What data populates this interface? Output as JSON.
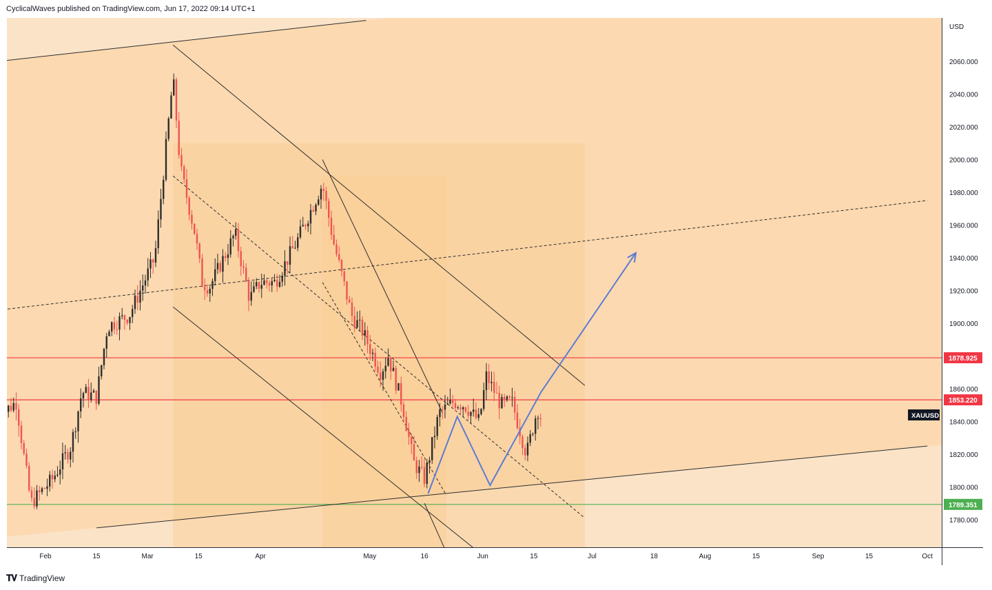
{
  "header": {
    "text": "CyclicalWaves published on TradingView.com, Jun 17, 2022 09:14 UTC+1"
  },
  "footer": {
    "brand": "TradingView"
  },
  "colors": {
    "background_outer": "#fbe3c8",
    "background_channel": "#fcd9b0",
    "band": "#f9cd95",
    "candle_up": "#2d2d2d",
    "candle_down": "#ef5350",
    "resistance_line": "#f23645",
    "support_line": "#4caf50",
    "projection": "#5b7bd5",
    "trend_line": "#2d2d2d"
  },
  "chart_data": {
    "type": "candlestick",
    "symbol": "XAUUSD",
    "currency": "USD",
    "yaxis_ticks": [
      "2060.000",
      "2040.000",
      "2020.000",
      "2000.000",
      "1980.000",
      "1960.000",
      "1940.000",
      "1920.000",
      "1900.000",
      "1860.000",
      "1840.000",
      "1820.000",
      "1800.000",
      "1780.000"
    ],
    "yaxis_tick_values": [
      2060,
      2040,
      2020,
      2000,
      1980,
      1960,
      1940,
      1920,
      1900,
      1860,
      1840,
      1820,
      1800,
      1780
    ],
    "xaxis_ticks": [
      "Feb",
      "15",
      "Mar",
      "15",
      "Apr",
      "May",
      "16",
      "Jun",
      "15",
      "Jul",
      "18",
      "Aug",
      "15",
      "Sep",
      "15",
      "Oct"
    ],
    "xaxis_tick_dates": [
      "2022-02-01",
      "2022-02-15",
      "2022-03-01",
      "2022-03-15",
      "2022-04-01",
      "2022-05-01",
      "2022-05-16",
      "2022-06-01",
      "2022-06-15",
      "2022-07-01",
      "2022-07-18",
      "2022-08-01",
      "2022-08-15",
      "2022-09-01",
      "2022-09-15",
      "2022-10-01"
    ],
    "horizontal_levels": [
      {
        "label": "1878.925",
        "value": 1878.925,
        "color": "#f23645"
      },
      {
        "label": "1853.220",
        "value": 1853.22,
        "color": "#f23645"
      },
      {
        "label": "1789.351",
        "value": 1789.351,
        "color": "#4caf50"
      }
    ],
    "price_label": "XAUUSD",
    "close_path": [
      [
        "2022-01-19",
        1843
      ],
      [
        "2022-01-24",
        1852
      ],
      [
        "2022-01-26",
        1820
      ],
      [
        "2022-01-28",
        1790
      ],
      [
        "2022-02-03",
        1805
      ],
      [
        "2022-02-08",
        1825
      ],
      [
        "2022-02-11",
        1858
      ],
      [
        "2022-02-15",
        1855
      ],
      [
        "2022-02-18",
        1898
      ],
      [
        "2022-02-24",
        1905
      ],
      [
        "2022-03-01",
        1930
      ],
      [
        "2022-03-03",
        1940
      ],
      [
        "2022-03-08",
        2050
      ],
      [
        "2022-03-10",
        1995
      ],
      [
        "2022-03-14",
        1955
      ],
      [
        "2022-03-16",
        1925
      ],
      [
        "2022-03-18",
        1922
      ],
      [
        "2022-03-23",
        1945
      ],
      [
        "2022-03-25",
        1955
      ],
      [
        "2022-03-29",
        1915
      ],
      [
        "2022-04-01",
        1925
      ],
      [
        "2022-04-05",
        1925
      ],
      [
        "2022-04-11",
        1950
      ],
      [
        "2022-04-18",
        1985
      ],
      [
        "2022-04-21",
        1950
      ],
      [
        "2022-04-26",
        1905
      ],
      [
        "2022-04-29",
        1895
      ],
      [
        "2022-05-04",
        1870
      ],
      [
        "2022-05-06",
        1880
      ],
      [
        "2022-05-10",
        1850
      ],
      [
        "2022-05-13",
        1815
      ],
      [
        "2022-05-16",
        1805
      ],
      [
        "2022-05-20",
        1845
      ],
      [
        "2022-05-24",
        1852
      ],
      [
        "2022-05-27",
        1850
      ],
      [
        "2022-05-31",
        1840
      ],
      [
        "2022-06-02",
        1868
      ],
      [
        "2022-06-06",
        1850
      ],
      [
        "2022-06-09",
        1852
      ],
      [
        "2022-06-13",
        1820
      ],
      [
        "2022-06-16",
        1848
      ],
      [
        "2022-06-17",
        1842
      ]
    ],
    "trend_lines": [
      {
        "name": "upper-channel",
        "from": [
          "2022-01-19",
          2060
        ],
        "to": [
          "2022-04-30",
          2085
        ],
        "style": "solid"
      },
      {
        "name": "lower-channel",
        "from": [
          "2022-02-15",
          1775
        ],
        "to": [
          "2022-10-01",
          1825
        ],
        "style": "solid"
      },
      {
        "name": "mid-channel",
        "from": [
          "2022-01-19",
          1908
        ],
        "to": [
          "2022-10-01",
          1975
        ],
        "style": "dashed"
      },
      {
        "name": "down-upper",
        "from": [
          "2022-03-08",
          2070
        ],
        "to": [
          "2022-06-29",
          1862
        ],
        "style": "solid"
      },
      {
        "name": "down-lower",
        "from": [
          "2022-03-08",
          1910
        ],
        "to": [
          "2022-05-31",
          1760
        ],
        "style": "solid"
      },
      {
        "name": "down-mid",
        "from": [
          "2022-03-08",
          1990
        ],
        "to": [
          "2022-06-29",
          1781
        ],
        "style": "dashed"
      },
      {
        "name": "inner-upper",
        "from": [
          "2022-04-18",
          2000
        ],
        "to": [
          "2022-05-21",
          1845
        ],
        "style": "solid"
      },
      {
        "name": "inner-mid",
        "from": [
          "2022-04-18",
          1925
        ],
        "to": [
          "2022-05-22",
          1795
        ],
        "style": "dashed"
      },
      {
        "name": "inner-lower",
        "from": [
          "2022-05-16",
          1790
        ],
        "to": [
          "2022-05-22",
          1760
        ],
        "style": "solid"
      }
    ],
    "projection_path": [
      [
        "2022-05-17",
        1796
      ],
      [
        "2022-05-25",
        1843
      ],
      [
        "2022-06-03",
        1801
      ],
      [
        "2022-06-17",
        1858
      ],
      [
        "2022-07-13",
        1943
      ]
    ]
  }
}
